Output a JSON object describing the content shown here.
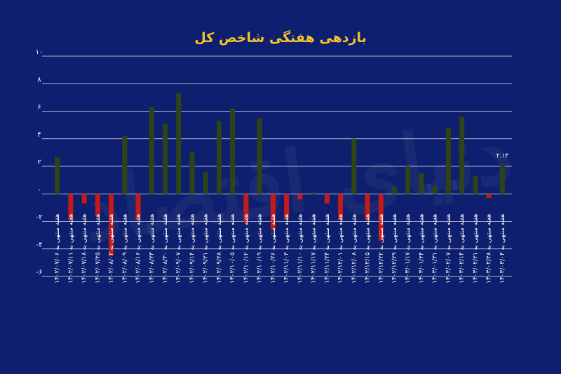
{
  "chart_data": {
    "type": "bar",
    "title": "بازدهی هفتگی شاخص کل",
    "xlabel": "",
    "ylabel": "",
    "ylim": [
      -6,
      10
    ],
    "yticks": [
      "۱۰",
      "۸",
      "۶",
      "۴",
      "۲",
      "۰",
      "-۲",
      "-۴",
      "-۶"
    ],
    "ytick_values": [
      10,
      8,
      6,
      4,
      2,
      0,
      -2,
      -4,
      -6
    ],
    "grid": true,
    "legend": "none",
    "watermark": "دنیای اقتصاد",
    "categories": [
      "هفته منتهی به ۱۴۰۲/۰۷/۰۶",
      "هفته منتهی به ۱۴۰۲/۰۷/۱۱",
      "هفته منتهی به ۱۴۰۲/۰۷/۱۸",
      "هفته منتهی به ۱۴۰۲/۰۷/۲۵",
      "هفته منتهی به ۱۴۰۲/۰۸/۰۲",
      "هفته منتهی به ۱۴۰۲/۰۸/۰۹",
      "هفته منتهی به ۱۴۰۲/۰۸/۱۶",
      "هفته منتهی به ۱۴۰۲/۰۸/۲۳",
      "هفته منتهی به ۱۴۰۲/۰۸/۳۰",
      "هفته منتهی به ۱۴۰۲/۰۹/۰۷",
      "هفته منتهی به ۱۴۰۲/۰۹/۱۴",
      "هفته منتهی به ۱۴۰۲/۰۹/۲۱",
      "هفته منتهی به ۱۴۰۲/۰۹/۲۸",
      "هفته منتهی به ۱۴۰۲/۱۰/۰۵",
      "هفته منتهی به ۱۴۰۲/۱۰/۱۲",
      "هفته منتهی به ۱۴۰۲/۱۰/۱۹",
      "هفته منتهی به ۱۴۰۲/۱۰/۲۶",
      "هفته منتهی به ۱۴۰۲/۱۱/۰۳",
      "هفته منتهی به ۱۴۰۲/۱۱/۱۰",
      "هفته منتهی به ۱۴۰۲/۱۱/۱۷",
      "هفته منتهی به ۱۴۰۲/۱۱/۲۴",
      "هفته منتهی به ۱۴۰۲/۱۲/۰۱",
      "هفته منتهی به ۱۴۰۲/۱۲/۰۸",
      "هفته منتهی به ۱۴۰۲/۱۲/۱۵",
      "هفته منتهی به ۱۴۰۲/۱۲/۲۲",
      "هفته منتهی به ۱۴۰۲/۱۲/۲۹",
      "هفته منتهی به ۱۴۰۳/۰۱/۱۷",
      "هفته منتهی به ۱۴۰۳/۰۱/۲۴",
      "هفته منتهی به ۱۴۰۳/۰۱/۳۱",
      "هفته منتهی به ۱۴۰۳/۰۲/۰۷",
      "هفته منتهی به ۱۴۰۳/۰۲/۱۴",
      "هفته منتهی به ۱۴۰۳/۰۲/۲۱",
      "هفته منتهی به ۱۴۰۳/۰۲/۲۸",
      "هفته منتهی به ۱۴۰۳/۰۳/۰۴"
    ],
    "values": [
      2.7,
      -1.9,
      -0.7,
      -1.6,
      -4.5,
      4.2,
      -1.9,
      6.3,
      5.1,
      7.3,
      3.0,
      1.6,
      5.3,
      6.2,
      -2.1,
      5.5,
      -2.6,
      -1.8,
      -0.4,
      0.1,
      -0.7,
      -1.9,
      4.0,
      -1.9,
      -3.4,
      0.5,
      2.0,
      1.5,
      0.6,
      4.8,
      5.6,
      1.3,
      -0.3,
      2.13
    ],
    "data_labels": [
      {
        "index": 33,
        "text": "۲.۱۳"
      }
    ],
    "colors": {
      "background": "#0d1f6e",
      "positive": "#2e4417",
      "negative": "#c41a1a",
      "title": "#f5c42c",
      "text": "#ffffff",
      "grid": "#ffffff"
    }
  }
}
